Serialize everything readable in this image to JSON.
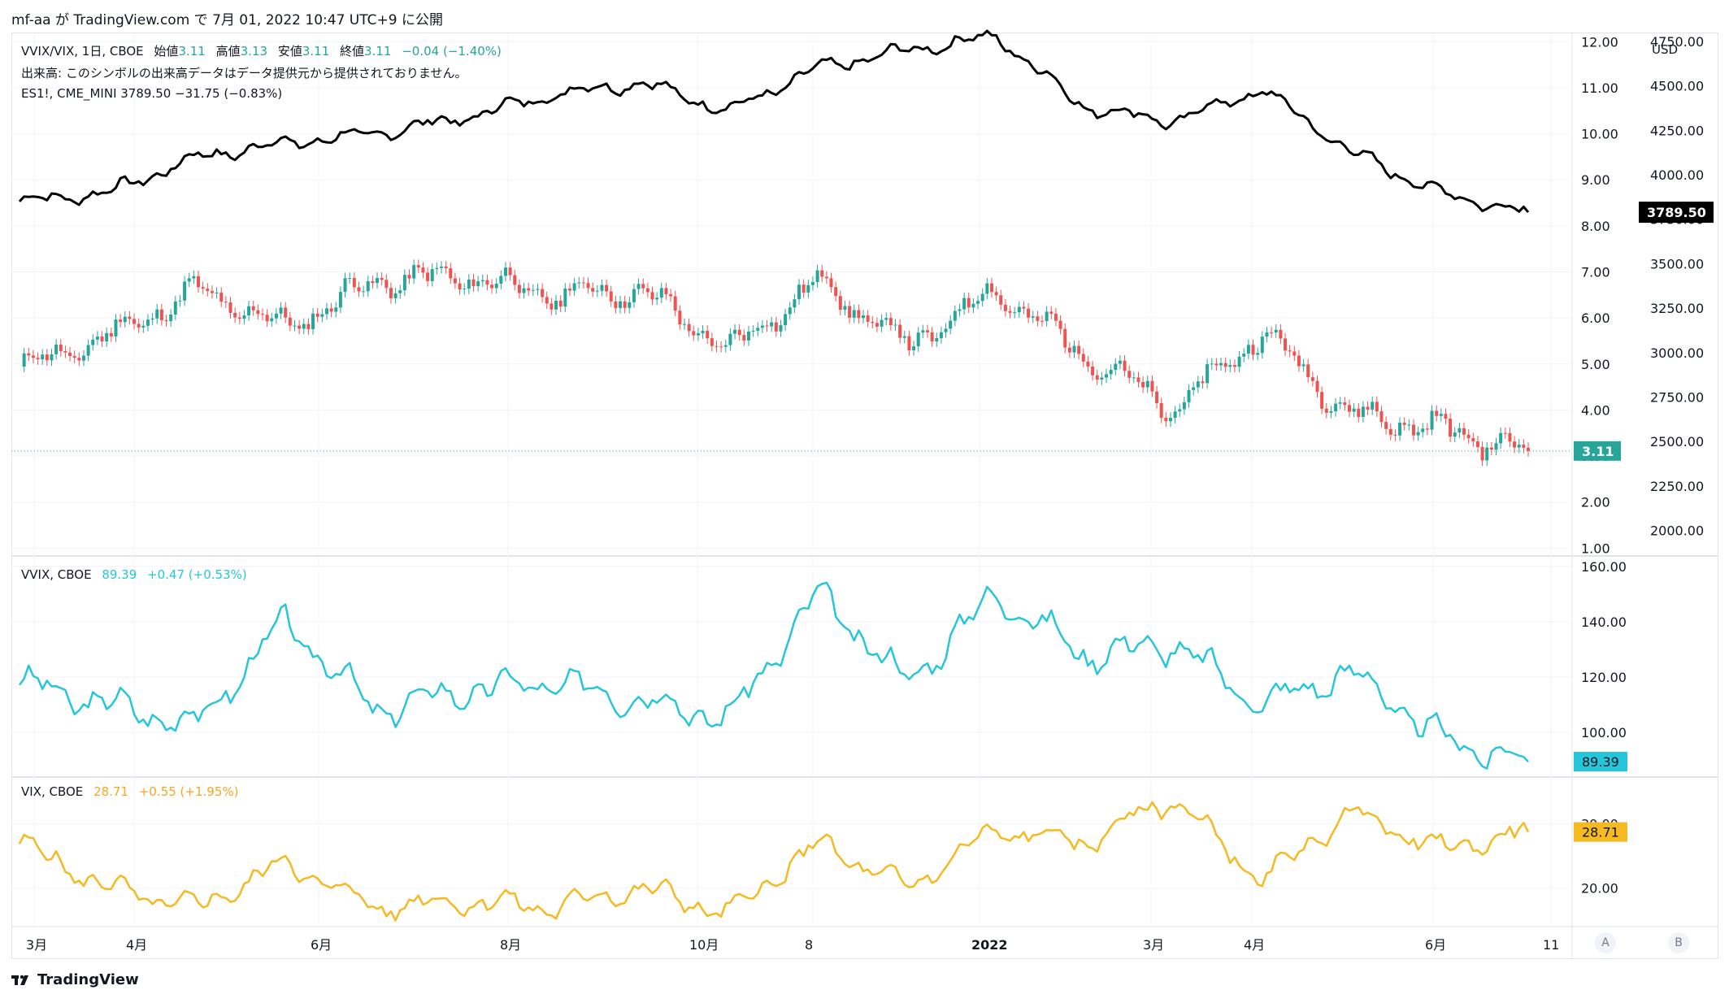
{
  "header": {
    "publish_text": "mf-aa が TradingView.com で 7月 01, 2022 10:47 UTC+9 に公開"
  },
  "legend_main": {
    "symbol": "VVIX/VIX, 1日, CBOE",
    "open_label": "始値",
    "open": "3.11",
    "high_label": "高値",
    "high": "3.13",
    "low_label": "安値",
    "low": "3.11",
    "close_label": "終値",
    "close": "3.11",
    "change": "−0.04 (−1.40%)",
    "volume_note": "出来高: このシンボルの出来高データはデータ提供元から提供されておりません。",
    "es_line": "ES1!, CME_MINI  3789.50  −31.75 (−0.83%)"
  },
  "legend_vvix": {
    "label": "VVIX, CBOE",
    "value": "89.39",
    "change": "+0.47 (+0.53%)"
  },
  "legend_vix": {
    "label": "VIX, CBOE",
    "value": "28.71",
    "change": "+0.55 (+1.95%)"
  },
  "axes": {
    "currency": "USD",
    "ratio_ticks": [
      "12.00",
      "11.00",
      "10.00",
      "9.00",
      "8.00",
      "7.00",
      "6.00",
      "5.00",
      "4.00",
      "3.00",
      "2.00",
      "1.00"
    ],
    "es_ticks": [
      "4750.00",
      "4500.00",
      "4250.00",
      "4000.00",
      "3750.00",
      "3500.00",
      "3250.00",
      "3000.00",
      "2750.00",
      "2500.00",
      "2250.00",
      "2000.00"
    ],
    "vvix_ticks": [
      "160.00",
      "140.00",
      "120.00",
      "100.00"
    ],
    "vix_ticks": [
      "30.00",
      "20.00"
    ],
    "ratio_last": "3.11",
    "es_last": "3789.50",
    "vvix_last": "89.39",
    "vix_last": "28.71",
    "x_labels": [
      "3月",
      "4月",
      "6月",
      "8月",
      "10月",
      "8",
      "2022",
      "3月",
      "4月",
      "6月",
      "11"
    ],
    "btn_a": "A",
    "btn_b": "B"
  },
  "footer": {
    "brand": "TradingView"
  },
  "colors": {
    "up": "#26a69a",
    "down": "#ef5350",
    "es": "#000000",
    "vvix": "#26c6da",
    "vix": "#f5b921",
    "grid": "#f0f3fa"
  },
  "chart_data": [
    {
      "type": "line",
      "name": "ES1!, CME_MINI",
      "ylabel": "USD",
      "ylim": [
        1875,
        4800
      ],
      "x": [
        "2021-02",
        "2021-03",
        "2021-04",
        "2021-05",
        "2021-06",
        "2021-07",
        "2021-08",
        "2021-09",
        "2021-10",
        "2021-11",
        "2021-12",
        "2022-01",
        "2022-02",
        "2022-03",
        "2022-04",
        "2022-05",
        "2022-06",
        "2022-06-30"
      ],
      "values": [
        3850,
        3900,
        4100,
        4180,
        4230,
        4320,
        4450,
        4520,
        4360,
        4600,
        4700,
        4780,
        4380,
        4300,
        4480,
        4130,
        3900,
        3789.5
      ]
    },
    {
      "type": "candlestick",
      "name": "VVIX/VIX",
      "ylim": [
        0.9,
        12.2
      ],
      "x": [
        "2021-02",
        "2021-03",
        "2021-04",
        "2021-05",
        "2021-06",
        "2021-07",
        "2021-08",
        "2021-09",
        "2021-10",
        "2021-11",
        "2021-12",
        "2022-01",
        "2022-02",
        "2022-03",
        "2022-04",
        "2022-05",
        "2022-06",
        "2022-06-30"
      ],
      "values": [
        4.9,
        5.6,
        6.6,
        5.8,
        6.8,
        6.9,
        6.5,
        6.6,
        5.3,
        6.8,
        5.4,
        6.6,
        5.2,
        4.0,
        5.7,
        3.9,
        3.6,
        3.11
      ]
    },
    {
      "type": "line",
      "name": "VVIX, CBOE",
      "ylim": [
        85,
        162
      ],
      "x": [
        "2021-02",
        "2021-03",
        "2021-04",
        "2021-05",
        "2021-06",
        "2021-07",
        "2021-08",
        "2021-09",
        "2021-10",
        "2021-11",
        "2021-12",
        "2022-01",
        "2022-02",
        "2022-03",
        "2022-04",
        "2022-05",
        "2022-06",
        "2022-06-30"
      ],
      "values": [
        118,
        110,
        103,
        140,
        108,
        115,
        118,
        112,
        105,
        150,
        118,
        150,
        128,
        132,
        110,
        122,
        98,
        89.39
      ]
    },
    {
      "type": "line",
      "name": "VIX, CBOE",
      "ylim": [
        14,
        37
      ],
      "x": [
        "2021-02",
        "2021-03",
        "2021-04",
        "2021-05",
        "2021-06",
        "2021-07",
        "2021-08",
        "2021-09",
        "2021-10",
        "2021-11",
        "2021-12",
        "2022-01",
        "2022-02",
        "2022-03",
        "2022-04",
        "2022-05",
        "2022-06",
        "2022-06-30"
      ],
      "values": [
        27,
        20,
        17,
        24,
        17,
        18,
        17,
        20,
        16,
        27,
        20,
        29,
        27,
        34,
        21,
        32,
        26,
        28.71
      ]
    }
  ]
}
